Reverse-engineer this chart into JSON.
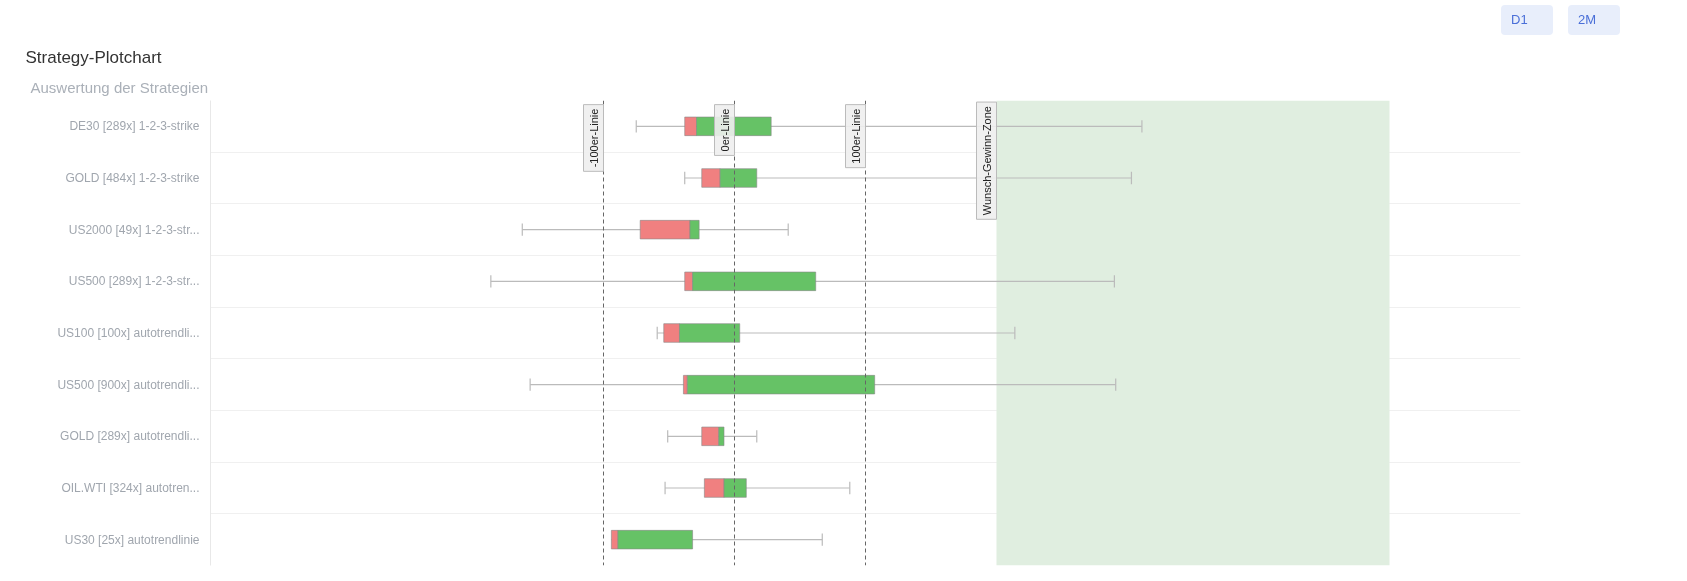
{
  "chart_data": {
    "type": "box",
    "orientation": "horizontal",
    "title": "Strategy-Plotchart",
    "subtitle": "Auswertung der Strategien",
    "annotations": [
      "D1",
      "2M"
    ],
    "categories": [
      "DE30 [289x] 1-2-3-strike",
      "GOLD [484x] 1-2-3-strike",
      "US2000 [49x] 1-2-3-str...",
      "US500 [289x] 1-2-3-str...",
      "US100 [100x] autotrendli...",
      "US500 [900x] autotrendli...",
      "GOLD [289x] autotrendli...",
      "OIL.WTI [324x] autotren...",
      "US30 [25x] autotrendlinie"
    ],
    "boxes": [
      {
        "low": -75,
        "q1": -38,
        "median": -29,
        "q3": 28,
        "high": 311
      },
      {
        "low": -38,
        "q1": -25,
        "median": -11,
        "q3": 17,
        "high": 303
      },
      {
        "low": -162,
        "q1": -72,
        "median": -34,
        "q3": -27,
        "high": 41
      },
      {
        "low": -186,
        "q1": -38,
        "median": -32,
        "q3": 62,
        "high": 290
      },
      {
        "low": -59,
        "q1": -54,
        "median": -42,
        "q3": 4,
        "high": 214
      },
      {
        "low": -156,
        "q1": -39,
        "median": -36,
        "q3": 107,
        "high": 291
      },
      {
        "low": -51,
        "q1": -25,
        "median": -12,
        "q3": -8,
        "high": 17
      },
      {
        "low": -53,
        "q1": -23,
        "median": -8,
        "q3": 9,
        "high": 88
      },
      {
        "low": null,
        "q1": -94,
        "median": -89,
        "q3": -32,
        "high": 67
      }
    ],
    "colors": [
      [
        "#f08080",
        "#66c266"
      ],
      [
        "#f08080",
        "#66c266"
      ],
      [
        "#f08080",
        "#66c266"
      ],
      [
        "#f08080",
        "#66c266"
      ],
      [
        "#f08080",
        "#66c266"
      ],
      [
        "#f08080",
        "#66c266"
      ],
      [
        "#f08080",
        "#66c266"
      ],
      [
        "#f08080",
        "#66c266"
      ],
      [
        "#f08080",
        "#66c266"
      ]
    ],
    "xlim": [
      -400,
      600
    ],
    "tick_labels": "y",
    "grid": "y",
    "ref_lines": [
      {
        "axis": "x",
        "value": -100,
        "label": "-100er-Linie",
        "line_style": "dashed"
      },
      {
        "axis": "x",
        "value": 0,
        "label": "0er-Linie",
        "line_style": "dashed"
      },
      {
        "axis": "x",
        "value": 100,
        "label": "100er-Linie",
        "line_style": "dashed"
      }
    ],
    "bands": [
      {
        "axis": "x",
        "from": 200,
        "to": 500,
        "label": "Wunsch-Gewinn-Zone",
        "color": "#e0eee0"
      }
    ]
  }
}
